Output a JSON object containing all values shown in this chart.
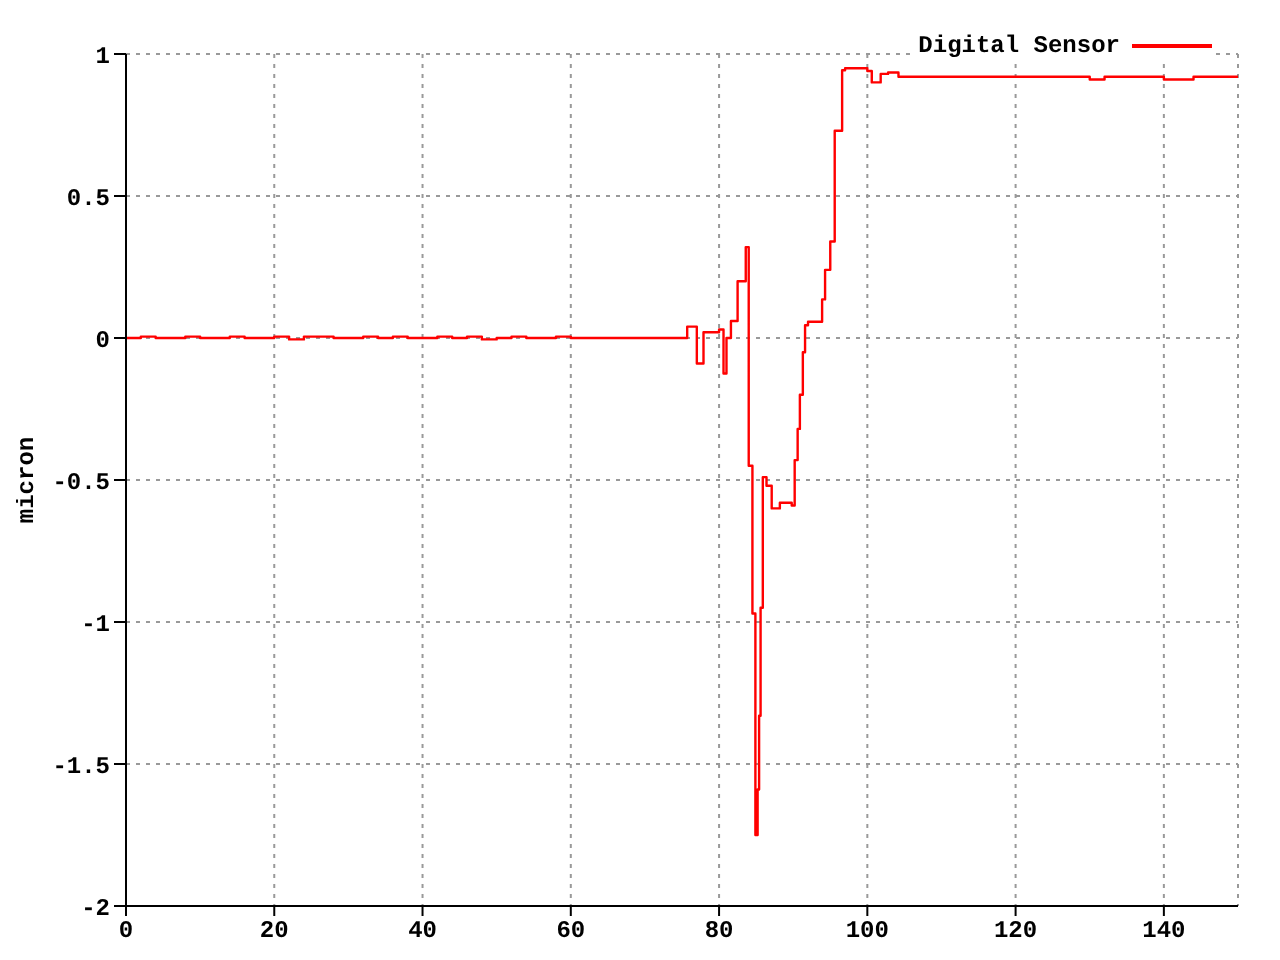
{
  "chart_data": {
    "type": "step",
    "ylabel": "micron",
    "x": [
      0,
      2,
      4,
      6,
      8,
      10,
      12,
      14,
      16,
      18,
      20,
      22,
      24,
      26,
      28,
      30,
      32,
      34,
      36,
      38,
      40,
      42,
      44,
      46,
      48,
      50,
      52,
      54,
      56,
      58,
      60,
      62,
      64,
      66,
      68,
      70,
      72,
      73.4,
      75.7,
      76.4,
      77,
      77.9,
      80,
      80.6,
      81,
      81.6,
      82.5,
      83.6,
      84,
      84.5,
      84.9,
      85.2,
      85.4,
      85.6,
      85.9,
      86.4,
      87.1,
      88.2,
      89.8,
      90.2,
      90.6,
      90.9,
      91.3,
      91.6,
      92,
      93.9,
      94.3,
      95,
      95.6,
      96.6,
      97,
      100,
      100.6,
      101.8,
      102.8,
      104.2,
      105,
      110,
      115,
      120,
      125,
      130,
      132,
      133,
      135,
      140,
      144,
      145,
      148,
      150
    ],
    "series": [
      {
        "name": "Digital Sensor",
        "color": "#ff0000",
        "values": [
          0,
          0.005,
          0,
          0,
          0.005,
          0,
          0,
          0.005,
          0,
          0,
          0.005,
          -0.005,
          0.005,
          0.005,
          0,
          0,
          0.005,
          0,
          0.005,
          0,
          0,
          0.005,
          0,
          0.005,
          -0.005,
          0,
          0.005,
          0,
          0,
          0.005,
          0,
          0,
          0,
          0,
          0,
          0,
          0,
          0,
          0.04,
          0.04,
          -0.09,
          0.02,
          0.03,
          -0.125,
          0,
          0.06,
          0.2,
          0.32,
          -0.45,
          -0.97,
          -1.75,
          -1.59,
          -1.33,
          -0.95,
          -0.49,
          -0.52,
          -0.6,
          -0.58,
          -0.59,
          -0.43,
          -0.32,
          -0.2,
          -0.05,
          0.045,
          0.057,
          0.136,
          0.24,
          0.34,
          0.73,
          0.943,
          0.95,
          0.94,
          0.9,
          0.93,
          0.935,
          0.92,
          0.92,
          0.92,
          0.92,
          0.92,
          0.92,
          0.91,
          0.92,
          0.92,
          0.92,
          0.91,
          0.92,
          0.92,
          0.92,
          0.92
        ]
      }
    ],
    "xlim": [
      0,
      150
    ],
    "xticks": [
      0,
      20,
      40,
      60,
      80,
      100,
      120,
      140
    ],
    "ylim": [
      -2,
      1
    ],
    "yticks": [
      -2,
      -1.5,
      -1,
      -0.5,
      0,
      0.5,
      1
    ],
    "grid": true,
    "legend": "top right"
  }
}
